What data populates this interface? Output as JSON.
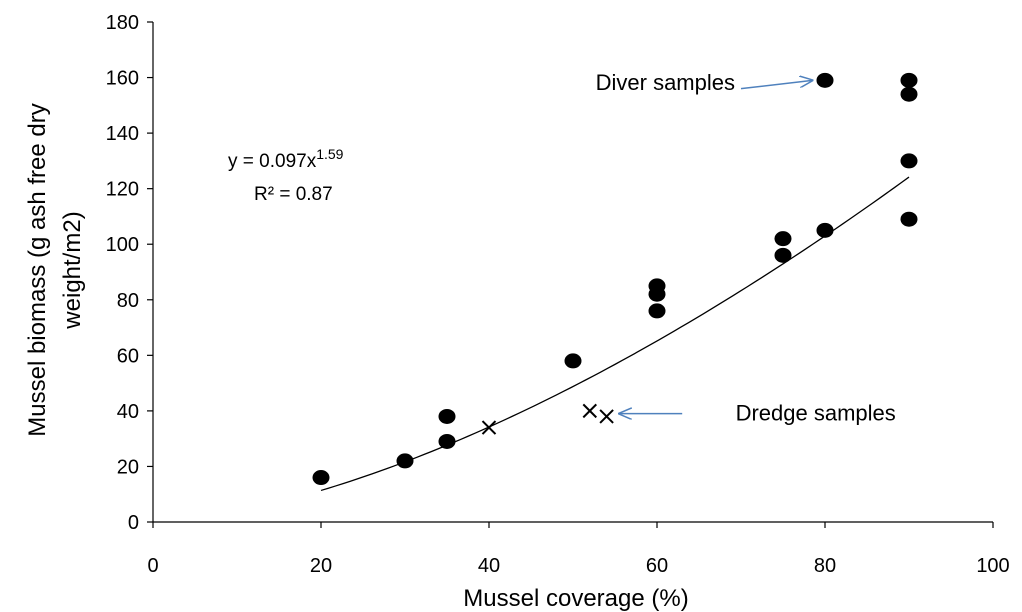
{
  "chart_data": {
    "type": "scatter",
    "xlabel": "Mussel coverage (%)",
    "ylabel_lines": [
      "Mussel biomass (g ash free dry",
      "weight/m2)"
    ],
    "xlim": [
      0,
      100
    ],
    "ylim": [
      0,
      180
    ],
    "xticks": [
      0,
      20,
      40,
      60,
      80,
      100
    ],
    "yticks": [
      0,
      20,
      40,
      60,
      80,
      100,
      120,
      140,
      160,
      180
    ],
    "grid": false,
    "series": [
      {
        "marker": "circle",
        "color": "#000000",
        "points": [
          [
            20,
            16
          ],
          [
            30,
            22
          ],
          [
            35,
            29
          ],
          [
            35,
            38
          ],
          [
            50,
            58
          ],
          [
            60,
            76
          ],
          [
            60,
            82
          ],
          [
            60,
            85
          ],
          [
            75,
            96
          ],
          [
            75,
            102
          ],
          [
            80,
            105
          ],
          [
            80,
            159
          ],
          [
            90,
            109
          ],
          [
            90,
            130
          ],
          [
            90,
            154
          ],
          [
            90,
            159
          ]
        ]
      },
      {
        "marker": "x",
        "color": "#000000",
        "points": [
          [
            40,
            34
          ],
          [
            52,
            40
          ],
          [
            54,
            38
          ]
        ]
      }
    ],
    "trendline": {
      "type": "power",
      "a": 0.097,
      "b": 1.59,
      "x_range": [
        20,
        90
      ],
      "equation_prefix": "y = 0.097x",
      "equation_exponent": "1.59",
      "r2_text": "R² = 0.87"
    },
    "annotations": [
      {
        "text": "Diver samples",
        "text_at": [
          66,
          157
        ],
        "arrow_from": [
          70,
          156
        ],
        "arrow_to": [
          78.5,
          159
        ]
      },
      {
        "text": "Dredge samples",
        "text_at": [
          64,
          38
        ],
        "arrow_from": [
          63,
          39
        ],
        "arrow_to": [
          55.5,
          39
        ]
      }
    ],
    "arrow_color": "#4f81bd"
  }
}
